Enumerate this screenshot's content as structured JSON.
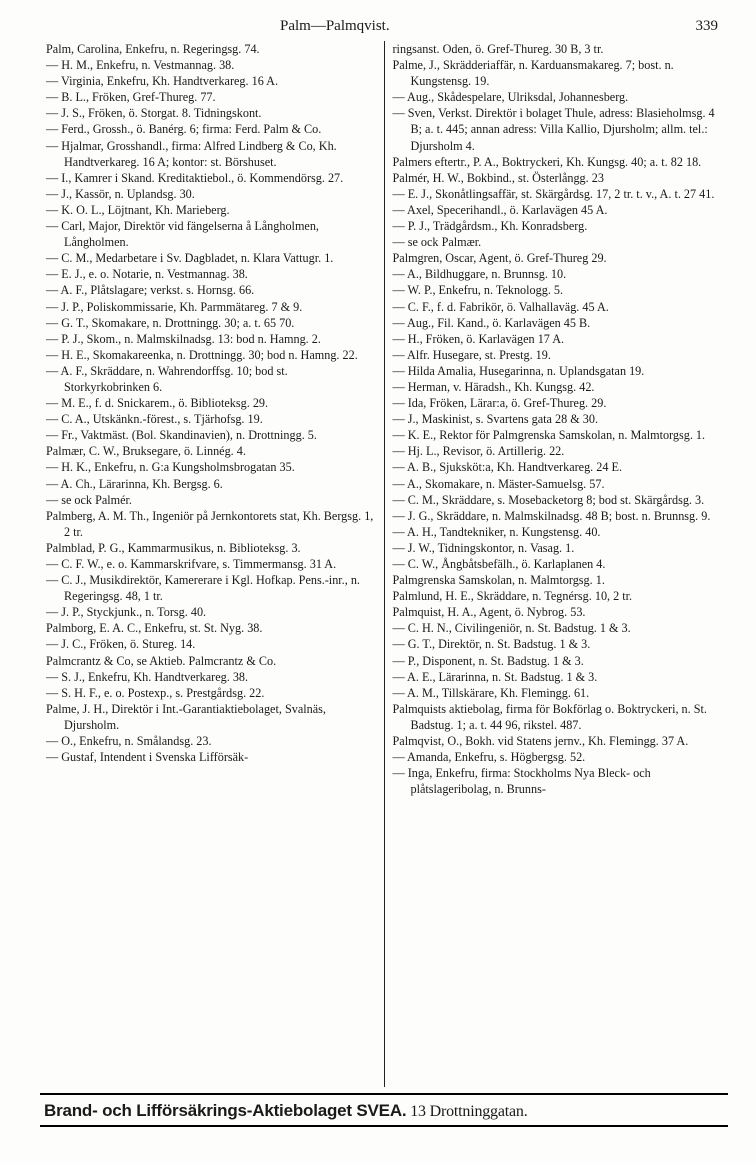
{
  "header": {
    "title": "Palm—Palmqvist.",
    "page_number": "339"
  },
  "colors": {
    "background": "#fdfdfb",
    "text": "#1a1a1a",
    "rule": "#222222"
  },
  "typography": {
    "body_font": "Georgia / Times New Roman, serif",
    "body_size_pt": 9,
    "header_size_pt": 11,
    "footer_font": "Arial / Helvetica, sans-serif",
    "footer_size_pt": 13,
    "footer_weight": "bold"
  },
  "left_column": [
    "Palm, Carolina, Enkefru, n. Regeringsg. 74.",
    "— H. M., Enkefru, n. Vestmannag. 38.",
    "— Virginia, Enkefru, Kh. Handtverkareg. 16 A.",
    "— B. L., Fröken, Gref-Thureg. 77.",
    "— J. S., Fröken, ö. Storgat. 8. Tidningskont.",
    "— Ferd., Grossh., ö. Banérg. 6; firma: Ferd. Palm & Co.",
    "— Hjalmar, Grosshandl., firma: Alfred Lindberg & Co, Kh. Handtverkareg. 16 A; kontor: st. Börshuset.",
    "— I., Kamrer i Skand. Kreditaktiebol., ö. Kommendörsg. 27.",
    "— J., Kassör, n. Uplandsg. 30.",
    "— K. O. L., Löjtnant, Kh. Marieberg.",
    "— Carl, Major, Direktör vid fängelserna å Långholmen, Långholmen.",
    "— C. M., Medarbetare i Sv. Dagbladet, n. Klara Vattugr. 1.",
    "— E. J., e. o. Notarie, n. Vestmannag. 38.",
    "— A. F., Plåtslagare; verkst. s. Hornsg. 66.",
    "— J. P., Poliskommissarie, Kh. Parmmätareg. 7 & 9.",
    "— G. T., Skomakare, n. Drottningg. 30; a. t. 65 70.",
    "— P. J., Skom., n. Malmskilnadsg. 13: bod n. Hamng. 2.",
    "— H. E., Skomakareenka, n. Drottningg. 30; bod n. Hamng. 22.",
    "— A. F., Skräddare, n. Wahrendorffsg. 10; bod st. Storkyrkobrinken 6.",
    "— M. E., f. d. Snickarem., ö. Biblioteksg. 29.",
    "— C. A., Utskänkn.-förest., s. Tjärhofsg. 19.",
    "— Fr., Vaktmäst. (Bol. Skandinavien), n. Drottningg. 5.",
    "Palmær, C. W., Bruksegare, ö. Linnég. 4.",
    "— H. K., Enkefru, n. G:a Kungsholmsbrogatan 35.",
    "— A. Ch., Lärarinna, Kh. Bergsg. 6.",
    "— se ock Palmér.",
    "Palmberg, A. M. Th., Ingeniör på Jernkontorets stat, Kh. Bergsg. 1, 2 tr.",
    "Palmblad, P. G., Kammarmusikus, n. Biblioteksg. 3.",
    "— C. F. W., e. o. Kammarskrifvare, s. Timmermansg. 31 A.",
    "— C. J., Musikdirektör, Kamererare i Kgl. Hofkap. Pens.-inr., n. Regeringsg. 48, 1 tr.",
    "— J. P., Styckjunk., n. Torsg. 40.",
    "Palmborg, E. A. C., Enkefru, st. St. Nyg. 38.",
    "— J. C., Fröken, ö. Stureg. 14.",
    "Palmcrantz & Co, se Aktieb. Palmcrantz & Co.",
    "— S. J., Enkefru, Kh. Handtverkareg. 38.",
    "— S. H. F., e. o. Postexp., s. Prestgårdsg. 22.",
    "Palme, J. H., Direktör i Int.-Garantiaktiebolaget, Svalnäs, Djursholm.",
    "— O., Enkefru, n. Smålandsg. 23.",
    "— Gustaf, Intendent i Svenska Lifförsäk-"
  ],
  "right_column": [
    "ringsanst. Oden, ö. Gref-Thureg. 30 B, 3 tr.",
    "Palme, J., Skrädderiaffär, n. Karduansmakareg. 7; bost. n. Kungstensg. 19.",
    "— Aug., Skådespelare, Ulriksdal, Johannesberg.",
    "— Sven, Verkst. Direktör i bolaget Thule, adress: Blasieholmsg. 4 B; a. t. 445; annan adress: Villa Kallio, Djursholm; allm. tel.: Djursholm 4.",
    "Palmers eftertr., P. A., Boktryckeri, Kh. Kungsg. 40; a. t. 82 18.",
    "Palmér, H. W., Bokbind., st. Österlångg. 23",
    "— E. J., Skonåtlingsaffär, st. Skärgårdsg. 17, 2 tr. t. v., A. t. 27 41.",
    "— Axel, Specerihandl., ö. Karlavägen 45 A.",
    "— P. J., Trädgårdsm., Kh. Konradsberg.",
    "— se ock Palmær.",
    "Palmgren, Oscar, Agent, ö. Gref-Thureg 29.",
    "— A., Bildhuggare, n. Brunnsg. 10.",
    "— W. P., Enkefru, n. Teknologg. 5.",
    "— C. F., f. d. Fabrikör, ö. Valhallaväg. 45 A.",
    "— Aug., Fil. Kand., ö. Karlavägen 45 B.",
    "— H., Fröken, ö. Karlavägen 17 A.",
    "— Alfr. Husegare, st. Prestg. 19.",
    "— Hilda Amalia, Husegarinna, n. Uplandsgatan 19.",
    "— Herman, v. Häradsh., Kh. Kungsg. 42.",
    "— Ida, Fröken, Lärar:a, ö. Gref-Thureg. 29.",
    "— J., Maskinist, s. Svartens gata 28 & 30.",
    "— K. E., Rektor för Palmgrenska Samskolan, n. Malmtorgsg. 1.",
    "— Hj. L., Revisor, ö. Artillerig. 22.",
    "— A. B., Sjuksköt:a, Kh. Handtverkareg. 24 E.",
    "— A., Skomakare, n. Mäster-Samuelsg. 57.",
    "— C. M., Skräddare, s. Mosebacketorg 8; bod st. Skärgårdsg. 3.",
    "— J. G., Skräddare, n. Malmskilnadsg. 48 B; bost. n. Brunnsg. 9.",
    "— A. H., Tandtekniker, n. Kungstensg. 40.",
    "— J. W., Tidningskontor, n. Vasag. 1.",
    "— C. W., Ångbåtsbefälh., ö. Karlaplanen 4.",
    "Palmgrenska Samskolan, n. Malmtorgsg. 1.",
    "Palmlund, H. E., Skräddare, n. Tegnérsg. 10, 2 tr.",
    "Palmquist, H. A., Agent, ö. Nybrog. 53.",
    "— C. H. N., Civilingeniör, n. St. Badstug. 1 & 3.",
    "— G. T., Direktör, n. St. Badstug. 1 & 3.",
    "— P., Disponent, n. St. Badstug. 1 & 3.",
    "— A. E., Lärarinna, n. St. Badstug. 1 & 3.",
    "— A. M., Tillskärare, Kh. Flemingg. 61.",
    "Palmquists aktiebolag, firma för Bokförlag o. Boktryckeri, n. St. Badstug. 1; a. t. 44 96, rikstel. 487.",
    "Palmqvist, O., Bokh. vid Statens jernv., Kh. Flemingg. 37 A.",
    "— Amanda, Enkefru, s. Högbergsg. 52.",
    "— Inga, Enkefru, firma: Stockholms Nya Bleck- och plåtslageribolag, n. Brunns-"
  ],
  "footer": {
    "bold": "Brand- och Lifförsäkrings-Aktiebolaget SVEA.",
    "rest": " 13 Drottninggatan."
  }
}
